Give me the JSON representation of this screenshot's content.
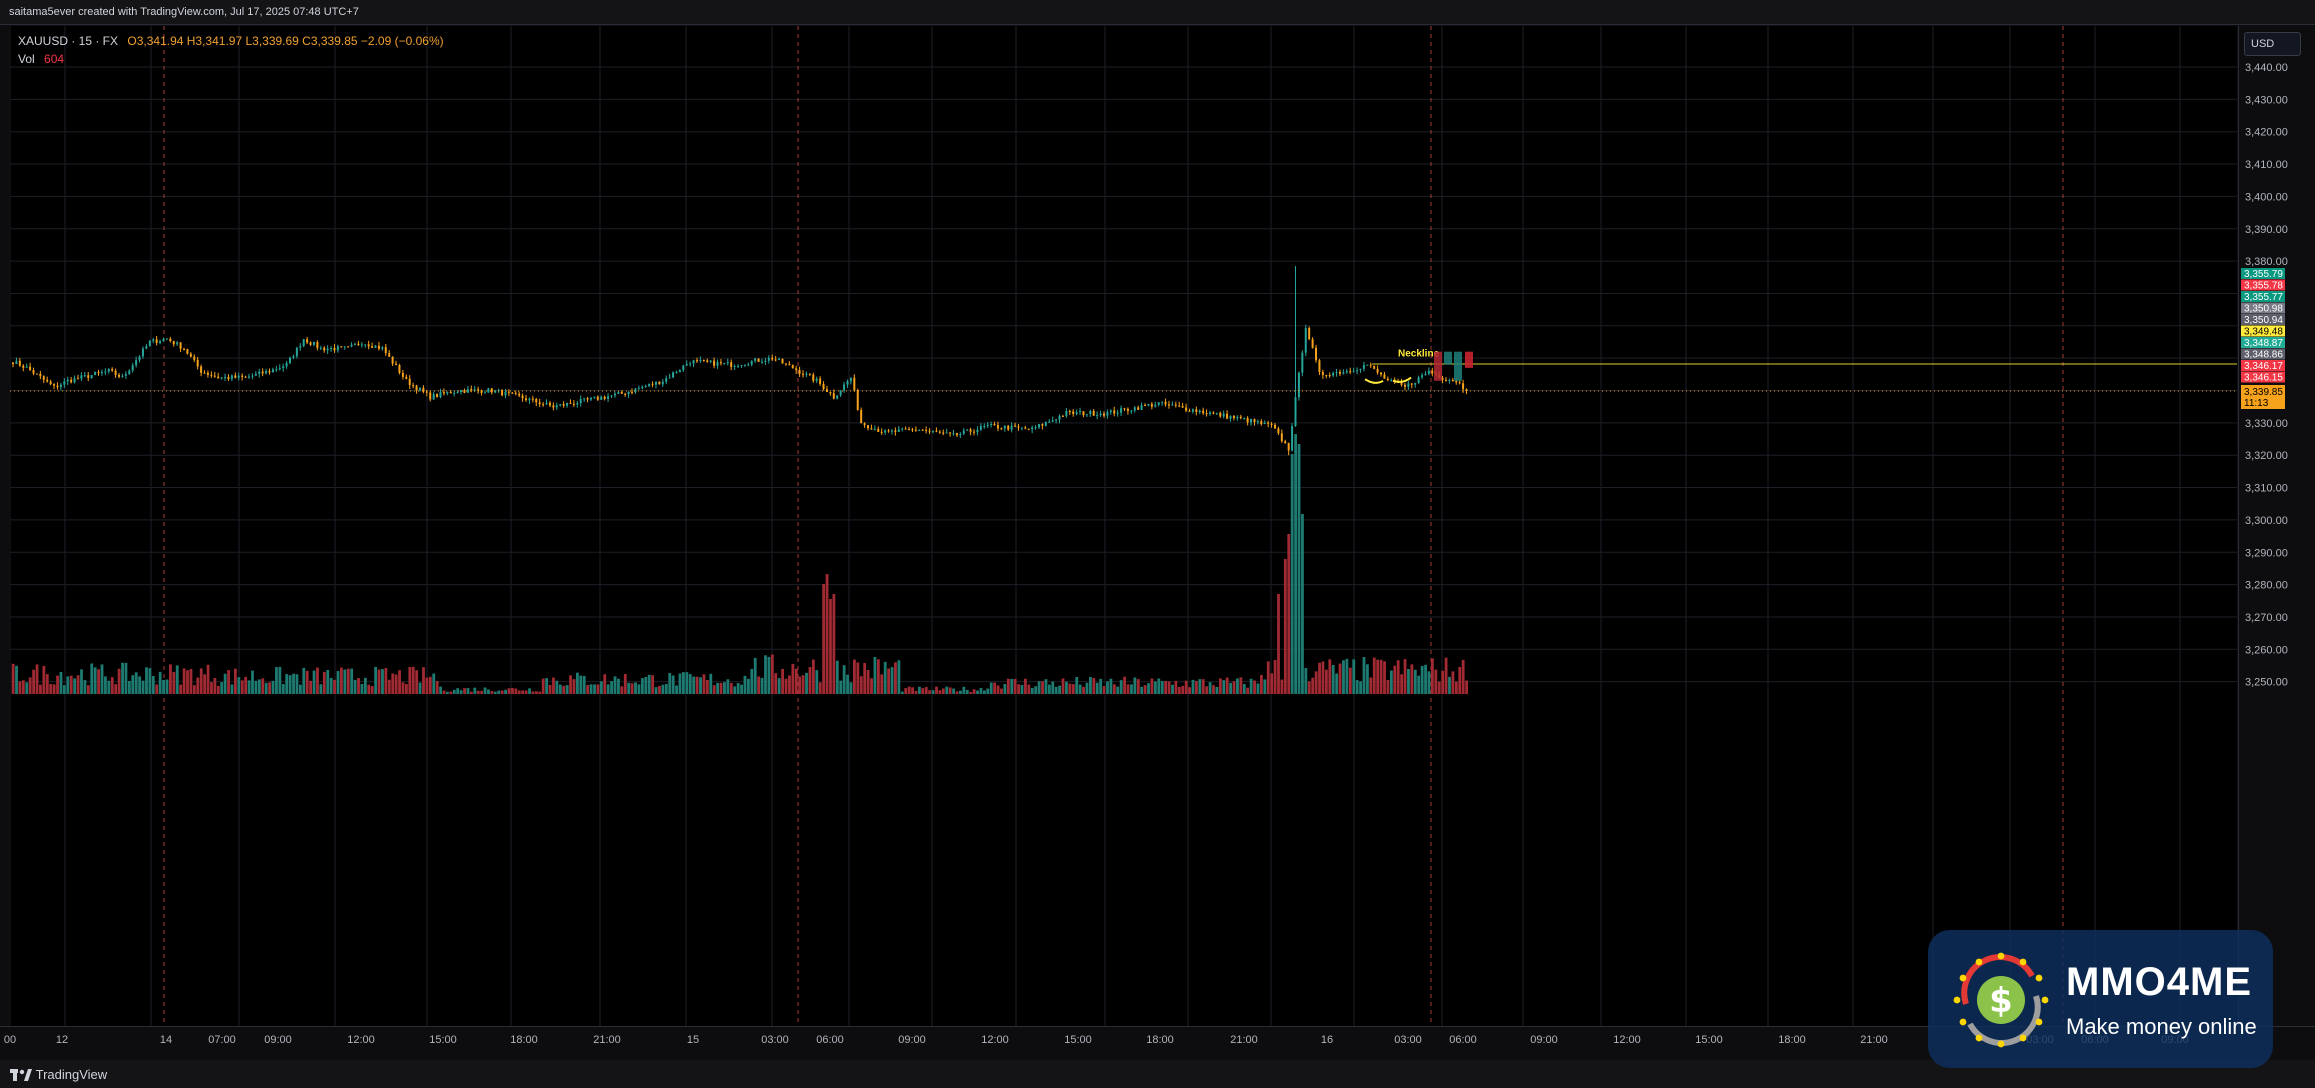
{
  "header": {
    "attribution": "saitama5ever created with TradingView.com, Jul 17, 2025 07:48 UTC+7"
  },
  "legend": {
    "symbol": "XAUUSD · 15 · FX",
    "ohlc": "O3,341.94  H3,341.97  L3,339.69  C3,339.85  −2.09 (−0.06%)",
    "volume_label": "Vol",
    "volume_value": "604"
  },
  "price_axis": {
    "currency": "USD",
    "tick_labels": [
      "3,440.00",
      "3,430.00",
      "3,420.00",
      "3,410.00",
      "3,400.00",
      "3,390.00",
      "3,380.00",
      "3,330.00",
      "3,320.00",
      "3,310.00",
      "3,300.00",
      "3,290.00",
      "3,280.00",
      "3,270.00",
      "3,260.00",
      "3,250.00"
    ],
    "price_tags": [
      {
        "value": "3,355.79",
        "color": "#089981"
      },
      {
        "value": "3,355.78",
        "color": "#f23645"
      },
      {
        "value": "3,355.77",
        "color": "#089981"
      },
      {
        "value": "3,350.98",
        "color": "#787b86"
      },
      {
        "value": "3,350.94",
        "color": "#5d606b"
      },
      {
        "value": "3,349.48",
        "color": "#ffeb3b"
      },
      {
        "value": "3,348.87",
        "color": "#22ab94"
      },
      {
        "value": "3,348.86",
        "color": "#5d606b"
      },
      {
        "value": "3,346.17",
        "color": "#f23645"
      },
      {
        "value": "3,346.15",
        "color": "#f23645"
      }
    ],
    "last_price": {
      "value": "3,339.85",
      "countdown": "11:13",
      "color": "#f7a21b"
    }
  },
  "time_axis": {
    "labels": [
      "00",
      "12",
      "14",
      "07:00",
      "09:00",
      "12:00",
      "15:00",
      "18:00",
      "21:00",
      "15",
      "03:00",
      "06:00",
      "09:00",
      "12:00",
      "15:00",
      "18:00",
      "21:00",
      "16",
      "03:00",
      "06:00",
      "09:00",
      "12:00",
      "15:00",
      "18:00",
      "21:00",
      "03:00",
      "06:00",
      "09:00"
    ]
  },
  "annotations": {
    "neckline_label": "Neckline"
  },
  "footer": {
    "brand": "TradingView"
  },
  "watermark": {
    "title": "MMO4ME",
    "subtitle": "Make money online"
  },
  "colors": {
    "up": "#26a69a",
    "down": "#f7a21b",
    "vol_up": "#1e7b72",
    "vol_down": "#a12a33",
    "session_line": "#a33a3a",
    "annotation": "#ffeb3b"
  },
  "chart_data": {
    "type": "candlestick",
    "symbol": "XAUUSD",
    "interval": "15",
    "ylim": [
      3240,
      3448
    ],
    "price_path_anchors": [
      [
        0,
        3349
      ],
      [
        4,
        3347
      ],
      [
        8,
        3344
      ],
      [
        12,
        3341
      ],
      [
        16,
        3343
      ],
      [
        24,
        3345
      ],
      [
        28,
        3346
      ],
      [
        32,
        3344
      ],
      [
        40,
        3355
      ],
      [
        45,
        3356
      ],
      [
        50,
        3353
      ],
      [
        55,
        3346
      ],
      [
        60,
        3344
      ],
      [
        68,
        3344
      ],
      [
        75,
        3346
      ],
      [
        80,
        3348
      ],
      [
        85,
        3356
      ],
      [
        90,
        3353
      ],
      [
        98,
        3353
      ],
      [
        102,
        3355
      ],
      [
        108,
        3353
      ],
      [
        115,
        3343
      ],
      [
        122,
        3338
      ],
      [
        130,
        3340
      ],
      [
        140,
        3340
      ],
      [
        148,
        3338
      ],
      [
        158,
        3335
      ],
      [
        168,
        3337
      ],
      [
        178,
        3339
      ],
      [
        190,
        3343
      ],
      [
        198,
        3349
      ],
      [
        210,
        3348
      ],
      [
        222,
        3350
      ],
      [
        228,
        3347
      ],
      [
        235,
        3343
      ],
      [
        240,
        3338
      ],
      [
        245,
        3344
      ],
      [
        248,
        3330
      ],
      [
        255,
        3327
      ],
      [
        265,
        3328
      ],
      [
        275,
        3326
      ],
      [
        285,
        3329
      ],
      [
        298,
        3328
      ],
      [
        308,
        3333
      ],
      [
        320,
        3333
      ],
      [
        335,
        3336
      ],
      [
        350,
        3333
      ],
      [
        360,
        3331
      ],
      [
        368,
        3329
      ],
      [
        373,
        3322
      ],
      [
        378,
        3360
      ],
      [
        382,
        3345
      ],
      [
        390,
        3346
      ],
      [
        396,
        3348
      ],
      [
        402,
        3343
      ],
      [
        407,
        3341
      ],
      [
        410,
        3343
      ],
      [
        414,
        3346
      ],
      [
        418,
        3344
      ],
      [
        422,
        3343
      ],
      [
        425,
        3340
      ]
    ],
    "volume_spikes": [
      [
        237,
        110
      ],
      [
        238,
        120
      ],
      [
        239,
        95
      ],
      [
        240,
        100
      ],
      [
        370,
        100
      ],
      [
        372,
        135
      ],
      [
        373,
        160
      ],
      [
        374,
        240
      ],
      [
        375,
        260
      ],
      [
        376,
        250
      ],
      [
        377,
        180
      ]
    ],
    "last_close": 3339.85
  }
}
